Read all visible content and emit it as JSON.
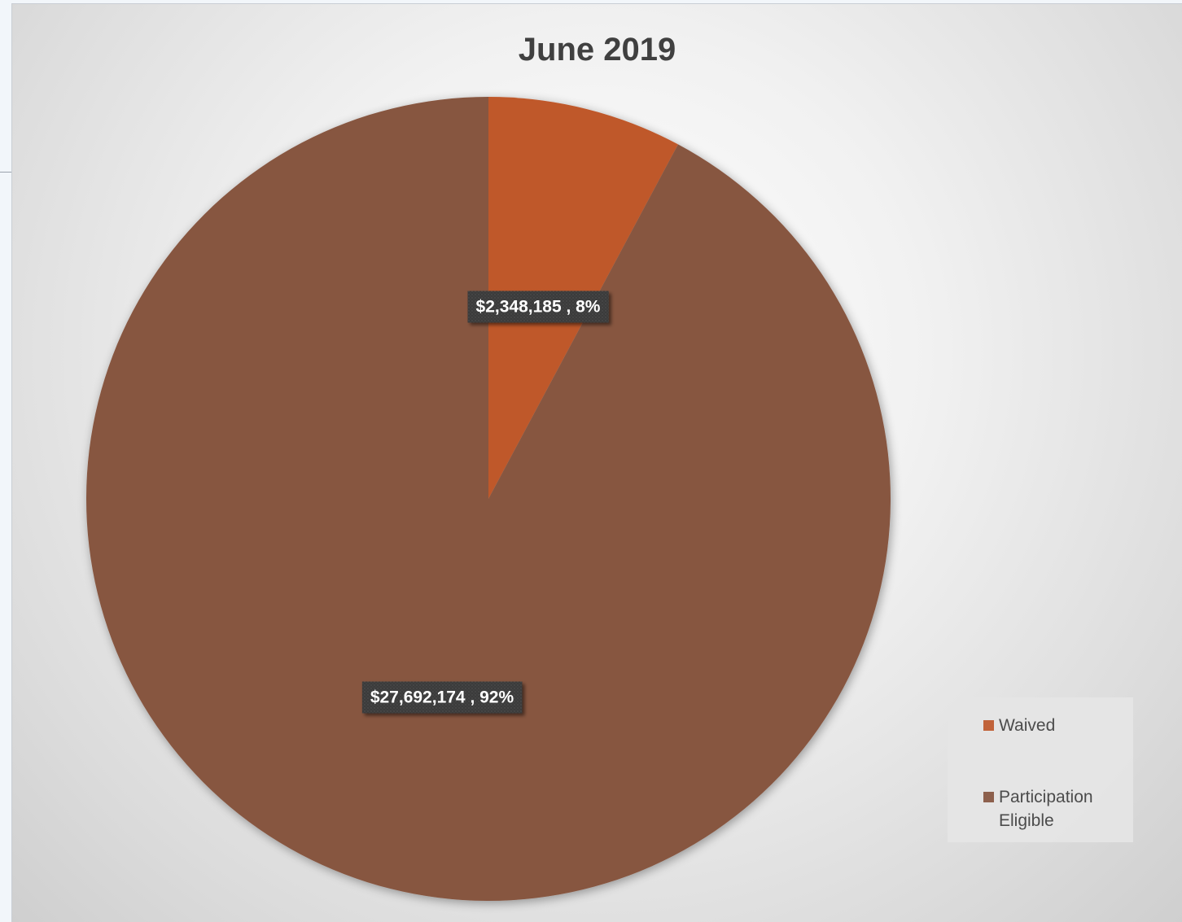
{
  "chart_data": {
    "type": "pie",
    "title": "June 2019",
    "slices": [
      {
        "name": "Waived",
        "value": 2348185,
        "percent": 8,
        "label": "$2,348,185 , 8%",
        "color": "#bf592c"
      },
      {
        "name": "Participation Eligible",
        "value": 27692174,
        "percent": 92,
        "label": "$27,692,174 , 92%",
        "color": "#875641"
      }
    ],
    "legend_position": "bottom-right"
  }
}
